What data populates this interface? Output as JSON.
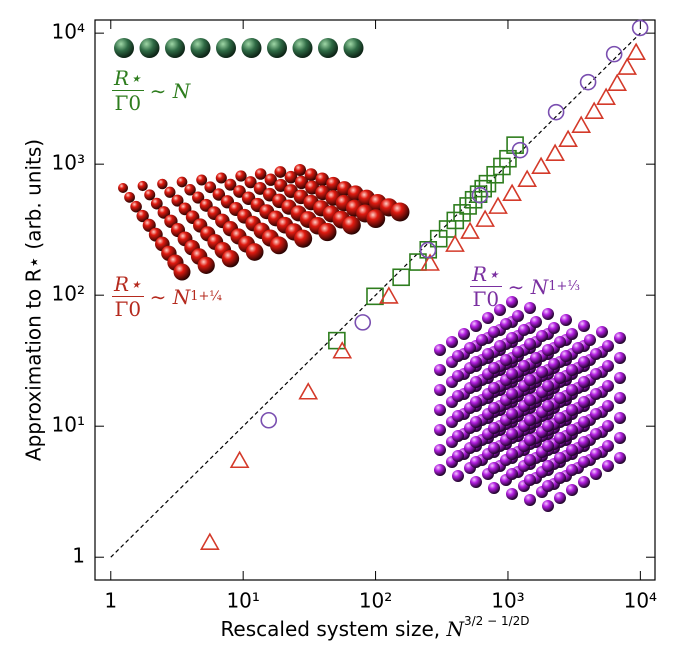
{
  "chart_data": {
    "type": "scatter",
    "xlabel": "Rescaled system size,",
    "xlabel_math": {
      "base": "N",
      "exponent": "3/2 − 1/2D"
    },
    "ylabel": "Approximation to R⋆ (arb. units)",
    "xscale": "log",
    "yscale": "log",
    "xlim": [
      0.76,
      12900
    ],
    "ylim": [
      0.67,
      12600
    ],
    "xticks": [
      1,
      {
        "value": 10,
        "label": "10¹"
      },
      {
        "value": 100,
        "label": "10²"
      },
      {
        "value": 1000,
        "label": "10³"
      },
      {
        "value": 10000,
        "label": "10⁴"
      }
    ],
    "yticks": [
      1,
      {
        "value": 10,
        "label": "10¹"
      },
      {
        "value": 100,
        "label": "10²"
      },
      {
        "value": 1000,
        "label": "10³"
      },
      {
        "value": 10000,
        "label": "10⁴"
      }
    ],
    "reference_line": {
      "x": [
        1,
        10000
      ],
      "y": [
        1,
        10000
      ],
      "color": "#000000"
    },
    "series": [
      {
        "marker": "square",
        "color": "#2e7d1e",
        "x": [
          51,
          99,
          156,
          209,
          250,
          300,
          350,
          400,
          450,
          500,
          550,
          600,
          650,
          700,
          800,
          900,
          1000,
          1132
        ],
        "values": [
          45,
          98,
          137,
          179,
          222,
          270,
          320,
          372,
          425,
          480,
          535,
          590,
          650,
          710,
          830,
          960,
          1100,
          1397
        ]
      },
      {
        "marker": "triangle",
        "color": "#d43a2a",
        "x": [
          5.6,
          9.4,
          31,
          56,
          126,
          258,
          398,
          517,
          672,
          841,
          1074,
          1396,
          1778,
          2270,
          2845,
          3573,
          4478,
          5510,
          6680,
          7950,
          9290
        ],
        "values": [
          1.28,
          5.4,
          18,
          37,
          97,
          173,
          241,
          303,
          374,
          470,
          590,
          755,
          948,
          1192,
          1524,
          1950,
          2494,
          3190,
          4080,
          5410,
          7030
        ]
      },
      {
        "marker": "circle",
        "color": "#7a4fb0",
        "x": [
          15.6,
          80,
          249,
          615,
          1234,
          2310,
          4030,
          6340,
          9960
        ],
        "values": [
          11.1,
          62,
          221,
          580,
          1279,
          2494,
          4227,
          6918,
          10960
        ]
      }
    ],
    "annotations": [
      {
        "numerator": "R⋆",
        "denominator": "Γ0",
        "relation": "∼ N",
        "exponent": "",
        "color": "#2e7d1e"
      },
      {
        "numerator": "R⋆",
        "denominator": "Γ0",
        "relation": "∼ N",
        "exponent": "1+¼",
        "color": "#b52a1e"
      },
      {
        "numerator": "R⋆",
        "denominator": "Γ0",
        "relation": "∼ N",
        "exponent": "1+⅓",
        "color": "#7a2fa0"
      }
    ]
  }
}
